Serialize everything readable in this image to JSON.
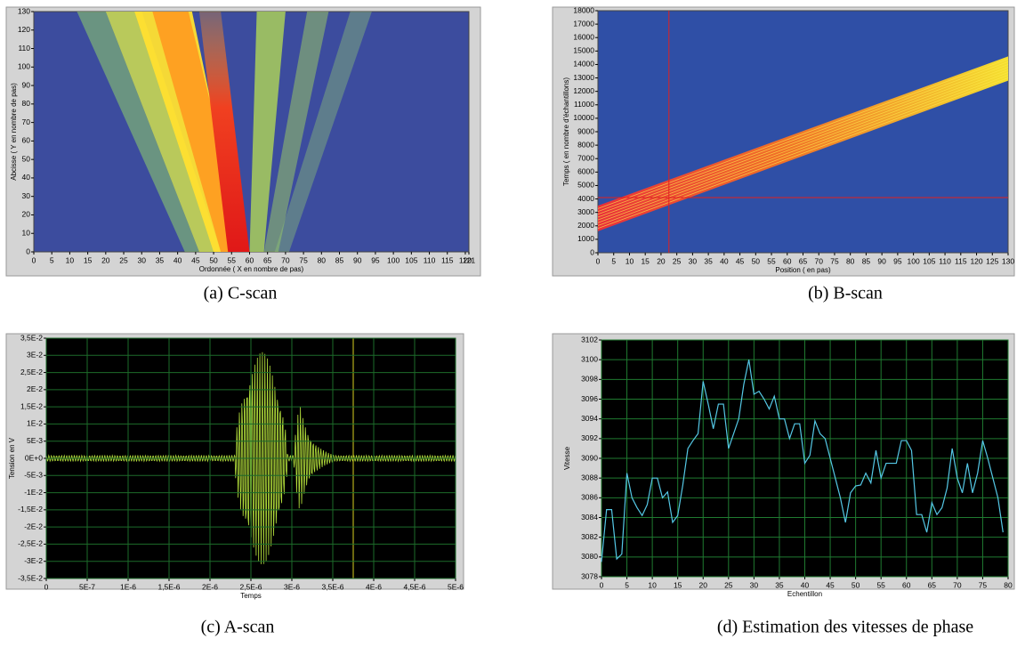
{
  "chart_data": [
    {
      "type": "heatmap",
      "caption": "(a) C-scan",
      "xlabel": "Ordonnée ( X en nombre de pas)",
      "ylabel": "Abcisse ( Y en nombre de pas)",
      "xlim": [
        0,
        121
      ],
      "xticks": [
        0,
        5,
        10,
        15,
        20,
        25,
        30,
        35,
        40,
        45,
        50,
        55,
        60,
        65,
        70,
        75,
        80,
        85,
        90,
        95,
        100,
        105,
        110,
        115,
        120,
        121
      ],
      "ylim": [
        0,
        130
      ],
      "yticks": [
        0,
        10,
        20,
        30,
        40,
        50,
        60,
        70,
        80,
        90,
        100,
        110,
        120,
        130
      ],
      "grid": false
    },
    {
      "type": "heatmap",
      "caption": "(b) B-scan",
      "xlabel": "Position ( en pas)",
      "ylabel": "Temps ( en nombre d'échantillons)",
      "xlim": [
        0,
        130
      ],
      "xticks": [
        0,
        5,
        10,
        15,
        20,
        25,
        30,
        35,
        40,
        45,
        50,
        55,
        60,
        65,
        70,
        75,
        80,
        85,
        90,
        95,
        100,
        105,
        110,
        115,
        120,
        125,
        130
      ],
      "ylim": [
        0,
        18000
      ],
      "yticks": [
        0,
        1000,
        2000,
        3000,
        4000,
        5000,
        6000,
        7000,
        8000,
        9000,
        10000,
        11000,
        12000,
        13000,
        14000,
        15000,
        16000,
        17000,
        18000
      ],
      "grid": false
    },
    {
      "type": "waveform",
      "caption": "(c) A-scan",
      "xlabel": "Temps",
      "ylabel": "Tension en V",
      "xlim": [
        0,
        5e-06
      ],
      "xticks": [
        0,
        {
          "value": 5e-07,
          "label": "5E-7"
        },
        {
          "value": 1e-06,
          "label": "1E-6"
        },
        {
          "value": 1.5e-06,
          "label": "1,5E-6"
        },
        {
          "value": 2e-06,
          "label": "2E-6"
        },
        {
          "value": 2.5e-06,
          "label": "2,5E-6"
        },
        {
          "value": 3e-06,
          "label": "3E-6"
        },
        {
          "value": 3.5e-06,
          "label": "3,5E-6"
        },
        {
          "value": 4e-06,
          "label": "4E-6"
        },
        {
          "value": 4.5e-06,
          "label": "4,5E-6"
        },
        {
          "value": 5e-06,
          "label": "5E-6"
        }
      ],
      "ylim": [
        -0.035,
        0.035
      ],
      "yticks": [
        {
          "value": -0.035,
          "label": "-3,5E-2"
        },
        {
          "value": -0.03,
          "label": "-3E-2"
        },
        {
          "value": -0.025,
          "label": "-2,5E-2"
        },
        {
          "value": -0.02,
          "label": "-2E-2"
        },
        {
          "value": -0.015,
          "label": "-1,5E-2"
        },
        {
          "value": -0.01,
          "label": "-1E-2"
        },
        {
          "value": -0.005,
          "label": "-5E-3"
        },
        {
          "value": 0,
          "label": "0E+0"
        },
        {
          "value": 0.005,
          "label": "5E-3"
        },
        {
          "value": 0.01,
          "label": "1E-2"
        },
        {
          "value": 0.015,
          "label": "1,5E-2"
        },
        {
          "value": 0.02,
          "label": "2E-2"
        },
        {
          "value": 0.025,
          "label": "2,5E-2"
        },
        {
          "value": 0.03,
          "label": "3E-2"
        },
        {
          "value": 0.035,
          "label": "3,5E-2"
        }
      ],
      "grid": true,
      "color": "#b4e03c"
    },
    {
      "type": "line",
      "caption": "(d) Estimation des vitesses de phase",
      "xlabel": "Echentillon",
      "ylabel": "Vitesse",
      "xlim": [
        0,
        80
      ],
      "xticks": [
        0,
        5,
        10,
        15,
        20,
        25,
        30,
        35,
        40,
        45,
        50,
        55,
        60,
        65,
        70,
        75,
        80
      ],
      "ylim": [
        3078,
        3102
      ],
      "yticks": [
        3078,
        3080,
        3082,
        3084,
        3086,
        3088,
        3090,
        3092,
        3094,
        3096,
        3098,
        3100,
        3102
      ],
      "grid": true,
      "color": "#55c8e6",
      "x": [
        0,
        1,
        2,
        3,
        4,
        5,
        6,
        7,
        8,
        9,
        10,
        11,
        12,
        13,
        14,
        15,
        16,
        17,
        18,
        19,
        20,
        21,
        22,
        23,
        24,
        25,
        26,
        27,
        28,
        29,
        30,
        31,
        32,
        33,
        34,
        35,
        36,
        37,
        38,
        39,
        40,
        41,
        42,
        43,
        44,
        45,
        46,
        47,
        48,
        49,
        50,
        51,
        52,
        53,
        54,
        55,
        56,
        57,
        58,
        59,
        60,
        61,
        62,
        63,
        64,
        65,
        66,
        67,
        68,
        69,
        70,
        71,
        72,
        73,
        74,
        75,
        76,
        77,
        78,
        79
      ],
      "values": [
        3079.5,
        3084.8,
        3084.8,
        3079.8,
        3080.3,
        3088.5,
        3086,
        3085,
        3084.2,
        3085.3,
        3088,
        3088,
        3086,
        3086.6,
        3083.5,
        3084.2,
        3087.3,
        3091,
        3091.8,
        3092.5,
        3097.8,
        3095.5,
        3093,
        3095.5,
        3095.5,
        3091,
        3092.5,
        3094,
        3097.5,
        3100,
        3096.5,
        3096.8,
        3096,
        3095,
        3096.3,
        3094,
        3094,
        3092,
        3093.5,
        3093.5,
        3089.5,
        3090.3,
        3093.8,
        3092.5,
        3092,
        3090,
        3088,
        3086,
        3083.5,
        3086.5,
        3087.2,
        3087.3,
        3088.5,
        3087.5,
        3090.8,
        3088,
        3089.5,
        3089.5,
        3089.5,
        3091.8,
        3091.8,
        3090.8,
        3084.3,
        3084.3,
        3082.5,
        3085.5,
        3084.3,
        3085,
        3087,
        3091,
        3088,
        3086.5,
        3089.5,
        3086.5,
        3088.5,
        3091.8,
        3090,
        3088,
        3086,
        3082.5
      ]
    }
  ]
}
